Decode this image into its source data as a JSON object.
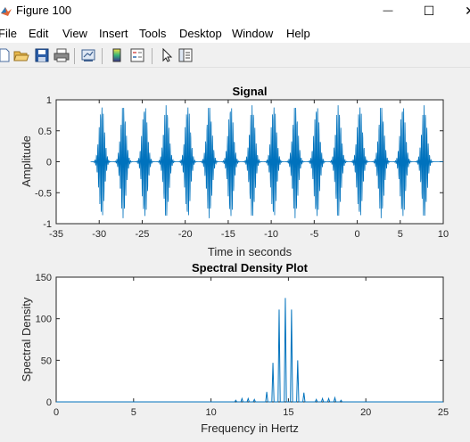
{
  "window": {
    "title": "Figure 100",
    "minimize_glyph": "—",
    "maximize_glyph": "☐",
    "close_glyph": "✕"
  },
  "menu": [
    "File",
    "Edit",
    "View",
    "Insert",
    "Tools",
    "Desktop",
    "Window",
    "Help"
  ],
  "toolbar": [
    "new-figure-icon",
    "open-file-icon",
    "save-icon",
    "print-icon",
    "link-plot-icon",
    "colorbar-icon",
    "legend-icon",
    "edit-plot-arrow-icon",
    "property-inspector-icon"
  ],
  "colors": {
    "line": "#0072bd",
    "axes_bg": "#ffffff",
    "figure_bg": "#f0f0f0"
  },
  "chart_data": [
    {
      "type": "line",
      "title": "Signal",
      "xlabel": "Time in seconds",
      "ylabel": "Amplitude",
      "xlim": [
        -35,
        10
      ],
      "ylim": [
        -1,
        1
      ],
      "xticks": [
        "-35",
        "-30",
        "-25",
        "-20",
        "-15",
        "-10",
        "-5",
        "0",
        "5",
        "10"
      ],
      "yticks": [
        "-1",
        "-0.5",
        "0",
        "0.5",
        "1"
      ],
      "signal_extent": [
        -31,
        10
      ],
      "pulse_centers": [
        -29.7,
        -27.2,
        -24.7,
        -22.2,
        -19.7,
        -17.2,
        -14.7,
        -12.2,
        -9.7,
        -7.2,
        -4.7,
        -2.2,
        0.3,
        2.8,
        5.3,
        7.8
      ],
      "pulse_peak_amplitude": 0.92,
      "carrier_frequency_hz": 15
    },
    {
      "type": "line",
      "title": "Spectral Density Plot",
      "xlabel": "Frequency in Hertz",
      "ylabel": "Spectral Density",
      "xlim": [
        0,
        25
      ],
      "ylim": [
        0,
        150
      ],
      "xticks": [
        "0",
        "5",
        "10",
        "15",
        "20",
        "25"
      ],
      "yticks": [
        "0",
        "50",
        "100",
        "150"
      ],
      "peaks": [
        {
          "x": 11.6,
          "y": 2
        },
        {
          "x": 12.0,
          "y": 4
        },
        {
          "x": 12.4,
          "y": 4
        },
        {
          "x": 12.8,
          "y": 3
        },
        {
          "x": 13.6,
          "y": 12
        },
        {
          "x": 14.0,
          "y": 47
        },
        {
          "x": 14.4,
          "y": 111
        },
        {
          "x": 14.8,
          "y": 125
        },
        {
          "x": 15.2,
          "y": 111
        },
        {
          "x": 15.6,
          "y": 50
        },
        {
          "x": 16.0,
          "y": 11
        },
        {
          "x": 16.8,
          "y": 3
        },
        {
          "x": 17.2,
          "y": 4
        },
        {
          "x": 17.6,
          "y": 4
        },
        {
          "x": 18.0,
          "y": 5
        },
        {
          "x": 18.4,
          "y": 2
        }
      ]
    }
  ]
}
